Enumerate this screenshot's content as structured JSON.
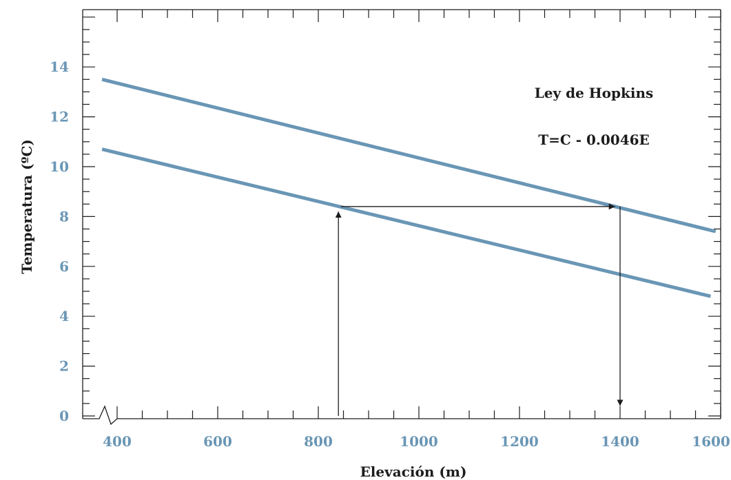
{
  "chart_data": {
    "type": "line",
    "title": "",
    "xlabel": "Elevación (m)",
    "ylabel": "Temperatura (ºC)",
    "xlim": [
      350,
      1620
    ],
    "ylim": [
      0,
      16
    ],
    "x_ticks": [
      400,
      600,
      800,
      1000,
      1200,
      1400,
      1600
    ],
    "y_ticks": [
      0,
      2,
      4,
      6,
      8,
      10,
      12,
      14
    ],
    "grid": false,
    "axis_break": true,
    "series": [
      {
        "name": "",
        "x": [
          370,
          1590
        ],
        "y": [
          13.5,
          7.4
        ]
      },
      {
        "name": "",
        "x": [
          370,
          1580
        ],
        "y": [
          10.7,
          4.8
        ]
      }
    ],
    "annotations": [
      {
        "text": "Ley de Hopkins"
      },
      {
        "text": "T=C - 0.0046E"
      }
    ],
    "arrows": [
      {
        "from": [
          840,
          0
        ],
        "to": [
          840,
          8.2
        ]
      },
      {
        "from": [
          845,
          8.4
        ],
        "to": [
          1390,
          8.4
        ]
      },
      {
        "from": [
          1400,
          8.4
        ],
        "to": [
          1400,
          0.4
        ]
      }
    ],
    "colors": {
      "line": "#6a96b5",
      "tick_label": "#6a96b5",
      "frame": "#1c1c1c",
      "arrow": "#1c1c1c"
    }
  }
}
